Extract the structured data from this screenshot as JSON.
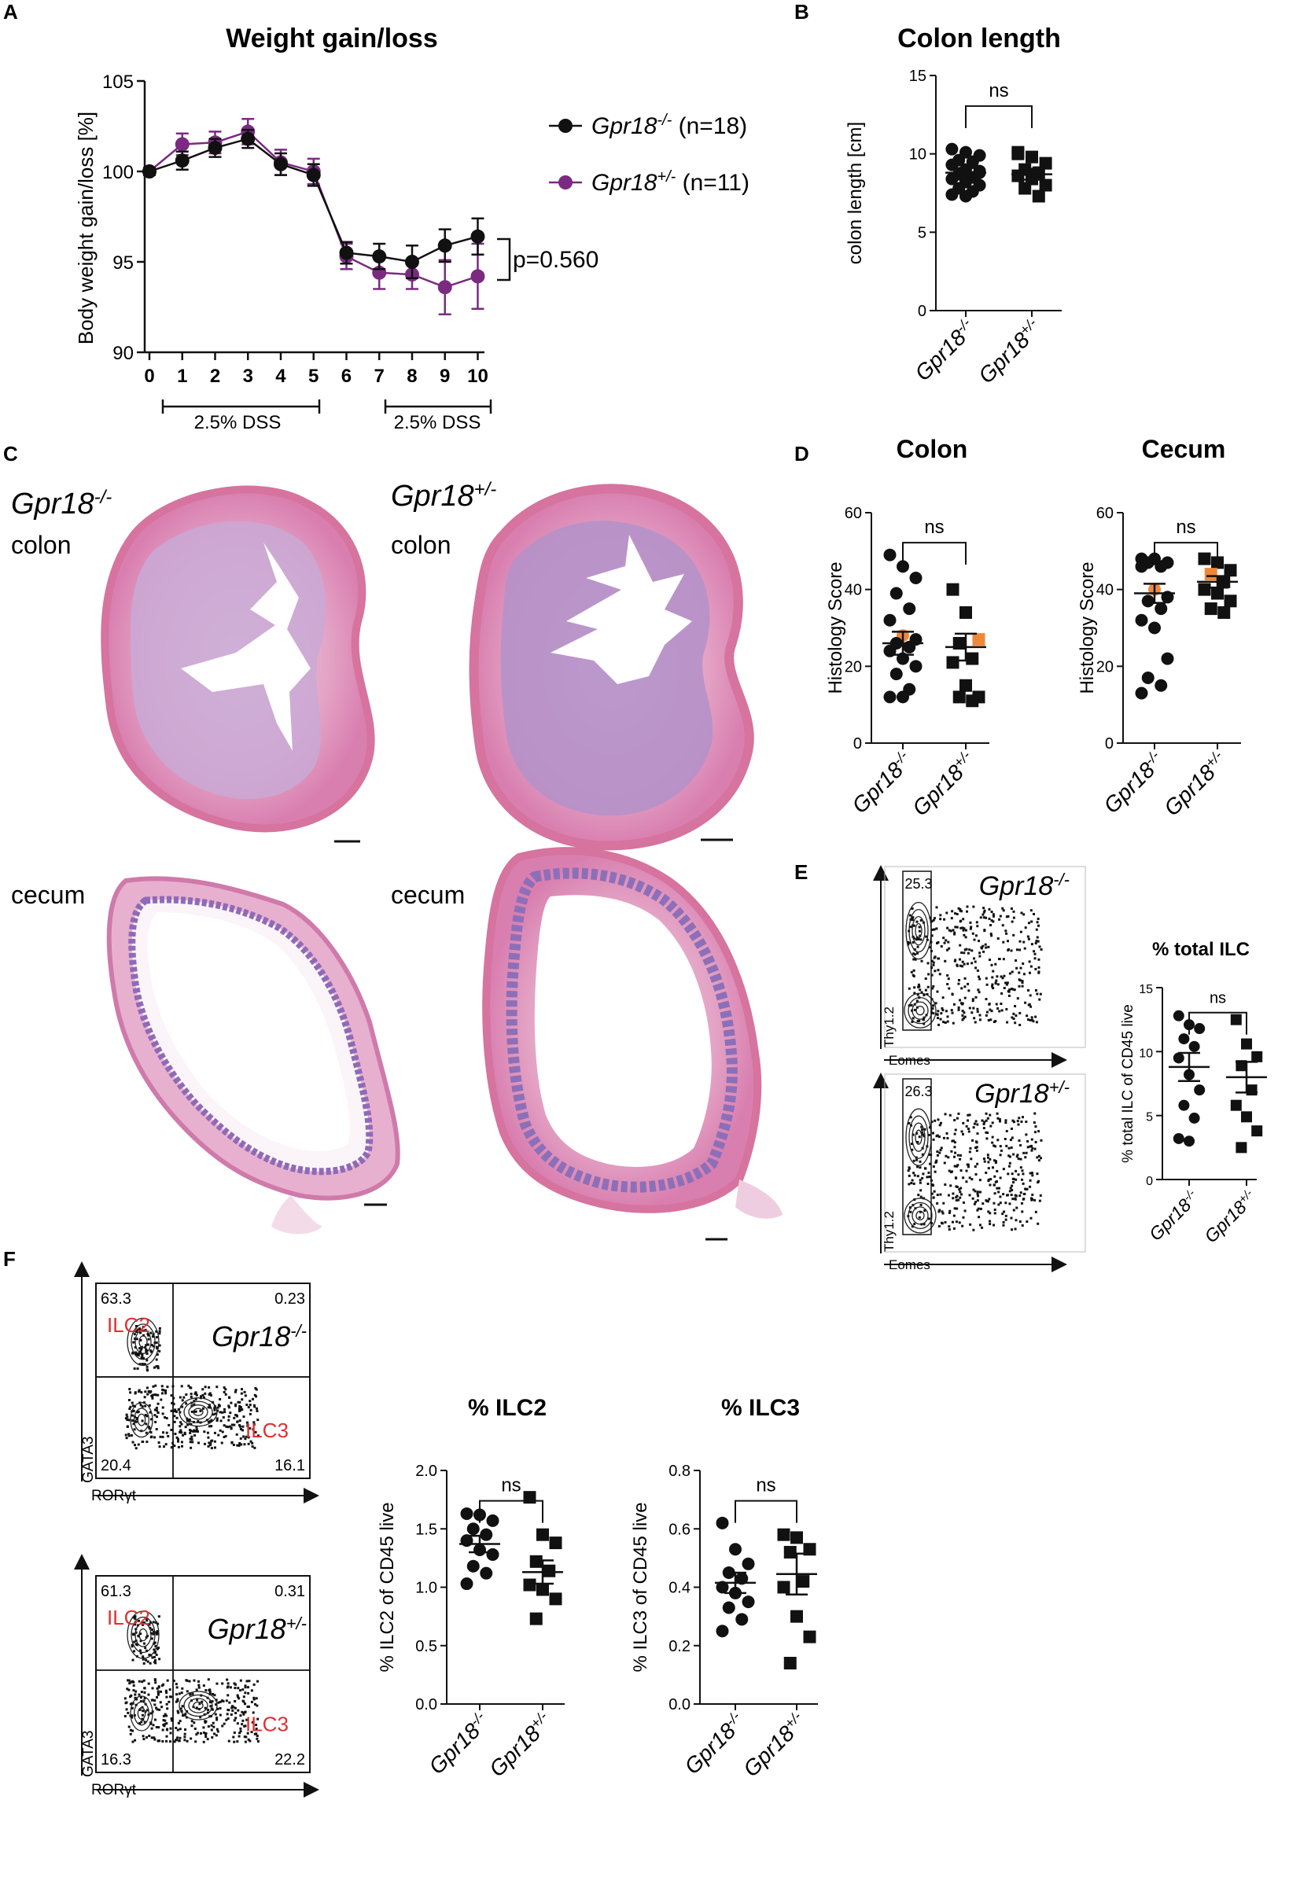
{
  "panels": {
    "A": "A",
    "B": "B",
    "C": "C",
    "D": "D",
    "E": "E",
    "F": "F"
  },
  "colors": {
    "ko": "#111111",
    "het": "#7b2a82",
    "highlight": "#f0883a",
    "tissue_pink": "#e6a3c3",
    "tissue_purple": "#8c6fb8"
  },
  "chart_data": [
    {
      "id": "A",
      "type": "line",
      "title": "Weight gain/loss",
      "ylabel": "Body weight gain/loss [%]",
      "xlabel": "",
      "x": [
        0,
        1,
        2,
        3,
        4,
        5,
        6,
        7,
        8,
        9,
        10
      ],
      "ylim": [
        90,
        105
      ],
      "yticks": [
        90,
        95,
        100,
        105
      ],
      "series": [
        {
          "name": "Gpr18-/- (n=18)",
          "label_main": "Gpr18",
          "label_sup": "-/-",
          "label_n": " (n=18)",
          "color": "#111111",
          "values": [
            100,
            100.6,
            101.3,
            101.8,
            100.4,
            99.8,
            95.5,
            95.3,
            95.0,
            95.9,
            96.4
          ],
          "err": [
            0.2,
            0.5,
            0.5,
            0.5,
            0.6,
            0.6,
            0.6,
            0.7,
            0.9,
            0.9,
            1.0
          ]
        },
        {
          "name": "Gpr18+/- (n=11)",
          "label_main": "Gpr18",
          "label_sup": "+/-",
          "label_n": " (n=11)",
          "color": "#7b2a82",
          "values": [
            100,
            101.5,
            101.6,
            102.2,
            100.5,
            100.0,
            95.3,
            94.4,
            94.3,
            93.6,
            94.2
          ],
          "err": [
            0.2,
            0.6,
            0.6,
            0.7,
            0.7,
            0.7,
            0.7,
            0.9,
            0.8,
            1.5,
            1.8
          ]
        }
      ],
      "annotations": [
        "p=0.560",
        "2.5% DSS",
        "2.5% DSS"
      ]
    },
    {
      "id": "B",
      "type": "scatter",
      "title": "Colon length",
      "ylabel": "colon length [cm]",
      "ylim": [
        0,
        15
      ],
      "yticks": [
        0,
        5,
        10,
        15
      ],
      "categories": [
        {
          "main": "Gpr18",
          "sup": "-/-"
        },
        {
          "main": "Gpr18",
          "sup": "+/-"
        }
      ],
      "sig": "ns",
      "groups": [
        {
          "mean": 8.8,
          "sem": 0.3,
          "points": [
            10.3,
            10.1,
            9.9,
            9.6,
            9.5,
            9.3,
            9.0,
            8.9,
            8.7,
            8.5,
            8.4,
            8.2,
            8.0,
            7.8,
            7.6,
            7.4,
            7.3,
            8.8
          ]
        },
        {
          "mean": 8.7,
          "sem": 0.35,
          "points": [
            10.0,
            9.8,
            9.4,
            9.0,
            8.8,
            8.6,
            8.4,
            8.0,
            7.8,
            7.3,
            10.1
          ]
        }
      ]
    },
    {
      "id": "D1",
      "type": "scatter",
      "title": "Colon",
      "ylabel": "Histology Score",
      "ylim": [
        0,
        60
      ],
      "yticks": [
        0,
        20,
        40,
        60
      ],
      "categories": [
        {
          "main": "Gpr18",
          "sup": "-/-"
        },
        {
          "main": "Gpr18",
          "sup": "+/-"
        }
      ],
      "sig": "ns",
      "groups": [
        {
          "mean": 26,
          "sem": 3,
          "highlight_index": 6,
          "points": [
            49,
            46,
            43,
            39,
            35,
            32,
            28,
            27,
            26,
            25,
            24,
            22,
            20,
            18,
            14,
            12,
            12
          ]
        },
        {
          "mean": 25,
          "sem": 3.5,
          "highlight_index": 2,
          "points": [
            40,
            34,
            27,
            26,
            22,
            21,
            15,
            12,
            12,
            11
          ]
        }
      ]
    },
    {
      "id": "D2",
      "type": "scatter",
      "title": "Cecum",
      "ylabel": "Histology Score",
      "ylim": [
        0,
        60
      ],
      "yticks": [
        0,
        20,
        40,
        60
      ],
      "categories": [
        {
          "main": "Gpr18",
          "sup": "-/-"
        },
        {
          "main": "Gpr18",
          "sup": "+/-"
        }
      ],
      "sig": "ns",
      "groups": [
        {
          "mean": 39,
          "sem": 2.5,
          "highlight_index": 6,
          "points": [
            48,
            48,
            47,
            47,
            46,
            46,
            40,
            38,
            37,
            35,
            32,
            30,
            22,
            17,
            15,
            13
          ]
        },
        {
          "mean": 42,
          "sem": 1.5,
          "highlight_index": 3,
          "points": [
            48,
            47,
            45,
            44,
            42,
            40,
            39,
            37,
            35,
            34
          ]
        }
      ]
    },
    {
      "id": "E",
      "type": "scatter",
      "title": "% total ILC",
      "ylabel": "% total ILC of CD45 live",
      "ylim": [
        0,
        15
      ],
      "yticks": [
        0,
        5,
        10,
        15
      ],
      "categories": [
        {
          "main": "Gpr18",
          "sup": "-/-"
        },
        {
          "main": "Gpr18",
          "sup": "+/-"
        }
      ],
      "sig": "ns",
      "groups": [
        {
          "mean": 8.8,
          "sem": 1.1,
          "points": [
            12.8,
            12.1,
            11.8,
            11.0,
            10.4,
            9.5,
            8.2,
            7.0,
            5.8,
            4.8,
            3.2,
            3.0
          ]
        },
        {
          "mean": 8.0,
          "sem": 1.2,
          "points": [
            12.5,
            10.6,
            9.6,
            8.9,
            7.0,
            5.8,
            4.9,
            3.8,
            2.5
          ]
        }
      ]
    },
    {
      "id": "F1",
      "type": "scatter",
      "title": "% ILC2",
      "ylabel": "% ILC2 of CD45 live",
      "ylim": [
        0,
        2.0
      ],
      "yticks": [
        "0.0",
        "0.5",
        "1.0",
        "1.5",
        "2.0"
      ],
      "categories": [
        {
          "main": "Gpr18",
          "sup": "-/-"
        },
        {
          "main": "Gpr18",
          "sup": "+/-"
        }
      ],
      "sig": "ns",
      "groups": [
        {
          "mean": 1.37,
          "sem": 0.07,
          "points": [
            1.63,
            1.62,
            1.57,
            1.5,
            1.45,
            1.4,
            1.32,
            1.28,
            1.18,
            1.12,
            1.03
          ]
        },
        {
          "mean": 1.13,
          "sem": 0.1,
          "points": [
            1.77,
            1.45,
            1.38,
            1.22,
            1.14,
            1.02,
            0.98,
            0.9,
            0.73
          ]
        }
      ]
    },
    {
      "id": "F2",
      "type": "scatter",
      "title": "% ILC3",
      "ylabel": "% ILC3 of CD45 live",
      "ylim": [
        0,
        0.8
      ],
      "yticks": [
        "0.0",
        "0.2",
        "0.4",
        "0.6",
        "0.8"
      ],
      "categories": [
        {
          "main": "Gpr18",
          "sup": "-/-"
        },
        {
          "main": "Gpr18",
          "sup": "+/-"
        }
      ],
      "sig": "ns",
      "groups": [
        {
          "mean": 0.415,
          "sem": 0.035,
          "points": [
            0.62,
            0.53,
            0.48,
            0.45,
            0.43,
            0.4,
            0.38,
            0.35,
            0.33,
            0.29,
            0.25
          ]
        },
        {
          "mean": 0.445,
          "sem": 0.07,
          "points": [
            0.58,
            0.57,
            0.53,
            0.52,
            0.42,
            0.4,
            0.3,
            0.23,
            0.14
          ]
        }
      ]
    }
  ],
  "histology": {
    "labels": {
      "ko_main": "Gpr18",
      "ko_sup": "-/-",
      "het_main": "Gpr18",
      "het_sup": "+/-",
      "colon": "colon",
      "cecum": "cecum"
    }
  },
  "flow": {
    "E": [
      {
        "gate_value": "25.3",
        "genotype_main": "Gpr18",
        "genotype_sup": "-/-",
        "xlabel": "Eomes",
        "ylabel": "Thy1.2"
      },
      {
        "gate_value": "26.3",
        "genotype_main": "Gpr18",
        "genotype_sup": "+/-",
        "xlabel": "Eomes",
        "ylabel": "Thy1.2"
      }
    ],
    "F": [
      {
        "q_tl": "63.3",
        "q_tr": "0.23",
        "q_bl": "20.4",
        "q_br": "16.1",
        "ilc2": "ILC2",
        "ilc3": "ILC3",
        "genotype_main": "Gpr18",
        "genotype_sup": "-/-",
        "xlabel": "RORγt",
        "ylabel": "GATA3"
      },
      {
        "q_tl": "61.3",
        "q_tr": "0.31",
        "q_bl": "16.3",
        "q_br": "22.2",
        "ilc2": "ILC2",
        "ilc3": "ILC3",
        "genotype_main": "Gpr18",
        "genotype_sup": "+/-",
        "xlabel": "RORγt",
        "ylabel": "GATA3"
      }
    ]
  }
}
